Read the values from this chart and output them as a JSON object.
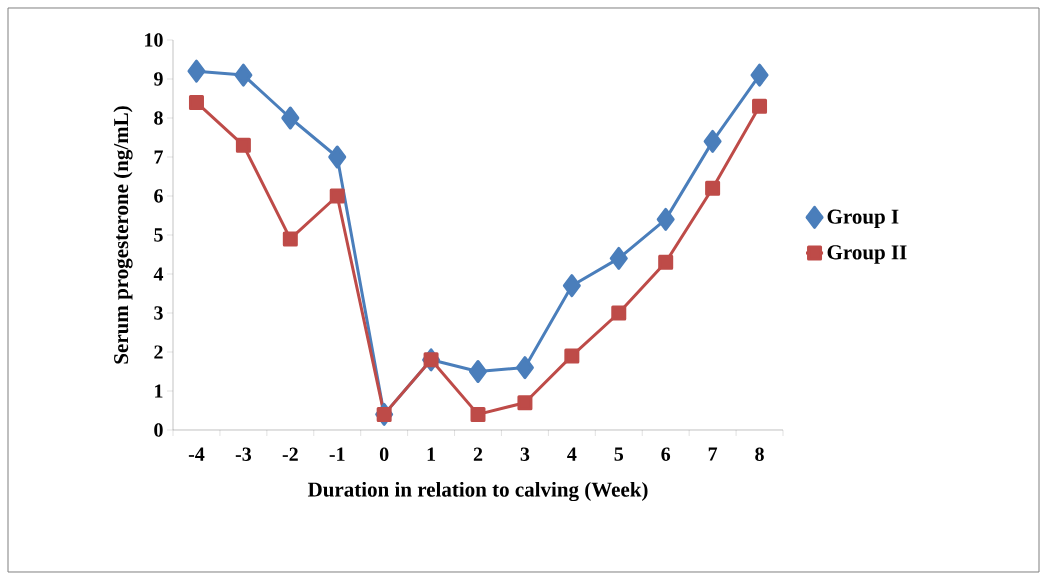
{
  "chart_data": {
    "type": "line",
    "xlabel": "Duration in relation to calving (Week)",
    "ylabel": "Serum progesterone (ng/mL)",
    "categories": [
      "-4",
      "-3",
      "-2",
      "-1",
      "0",
      "1",
      "2",
      "3",
      "4",
      "5",
      "6",
      "7",
      "8"
    ],
    "series": [
      {
        "name": "Group I",
        "color": "#4a7ebb",
        "marker": "diamond",
        "values": [
          9.2,
          9.1,
          8.0,
          7.0,
          0.4,
          1.8,
          1.5,
          1.6,
          3.7,
          4.4,
          5.4,
          7.4,
          9.1
        ]
      },
      {
        "name": "Group II",
        "color": "#be4b48",
        "marker": "square",
        "values": [
          8.4,
          7.3,
          4.9,
          6.0,
          0.4,
          1.8,
          0.4,
          0.7,
          1.9,
          3.0,
          4.3,
          6.2,
          8.3
        ]
      }
    ],
    "ylim": [
      0,
      10
    ],
    "yticks": [
      0,
      1,
      2,
      3,
      4,
      5,
      6,
      7,
      8,
      9,
      10
    ],
    "grid": false,
    "legend": "right",
    "line_style": "solid"
  }
}
